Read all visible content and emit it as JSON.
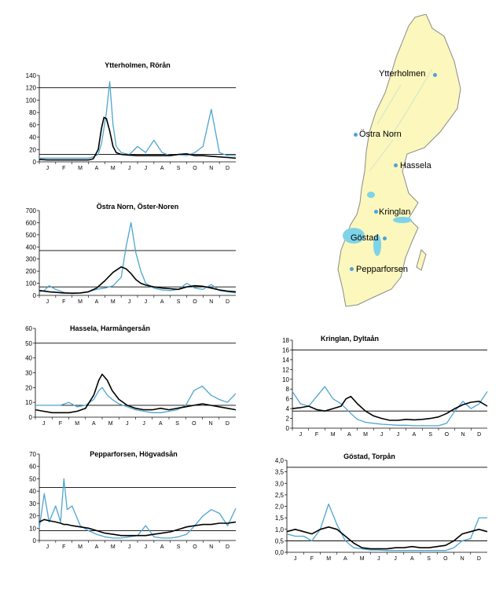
{
  "colors": {
    "observed": "#4ea5cf",
    "model": "#000000",
    "threshold": "#000000",
    "map_land": "#fbf7bd",
    "map_water": "#7fd3e8",
    "map_dot": "#4aa3df"
  },
  "month_labels": [
    "J",
    "F",
    "M",
    "A",
    "M",
    "J",
    "J",
    "A",
    "S",
    "O",
    "N",
    "D"
  ],
  "map": {
    "stations": [
      {
        "name": "Ytterholmen"
      },
      {
        "name": "Östra Norn"
      },
      {
        "name": "Hassela"
      },
      {
        "name": "Kringlan"
      },
      {
        "name": "Göstad"
      },
      {
        "name": "Pepparforsen"
      }
    ]
  },
  "chart_data": [
    {
      "type": "line",
      "title": "Ytterholmen, Rörån",
      "ylim": [
        0,
        140
      ],
      "yticks": [
        "0",
        "20",
        "40",
        "60",
        "80",
        "100",
        "120",
        "140"
      ],
      "thresholds": [
        120,
        12
      ],
      "x": [
        0,
        0.5,
        1,
        1.5,
        2,
        2.5,
        3,
        3.3,
        3.6,
        3.8,
        3.95,
        4.1,
        4.3,
        4.5,
        4.7,
        5,
        5.5,
        6,
        6.5,
        7,
        7.5,
        8,
        8.5,
        9,
        9.5,
        10,
        10.5,
        11,
        11.5,
        12
      ],
      "series": [
        {
          "name": "model",
          "values": [
            4,
            3,
            3,
            3,
            3,
            3,
            3,
            5,
            20,
            55,
            72,
            70,
            50,
            25,
            15,
            12,
            11,
            10,
            10,
            10,
            10,
            10,
            12,
            13,
            10,
            10,
            9,
            8,
            7,
            6
          ]
        },
        {
          "name": "observed",
          "values": [
            6,
            6,
            6,
            6,
            6,
            6,
            6,
            8,
            12,
            30,
            55,
            80,
            130,
            60,
            25,
            15,
            12,
            25,
            15,
            35,
            15,
            10,
            12,
            10,
            15,
            25,
            85,
            15,
            10,
            10
          ]
        }
      ]
    },
    {
      "type": "line",
      "title": "Östra Norn, Öster-Noren",
      "ylim": [
        0,
        700
      ],
      "yticks": [
        "0",
        "100",
        "200",
        "300",
        "400",
        "500",
        "600",
        "700"
      ],
      "thresholds": [
        370,
        70
      ],
      "x": [
        0,
        0.3,
        0.6,
        1,
        1.5,
        2,
        2.5,
        3,
        3.5,
        4,
        4.5,
        5,
        5.3,
        5.6,
        5.9,
        6.2,
        6.5,
        7,
        7.5,
        8,
        8.5,
        9,
        9.5,
        10,
        10.5,
        11,
        11.5,
        12
      ],
      "series": [
        {
          "name": "model",
          "values": [
            40,
            35,
            30,
            25,
            20,
            18,
            20,
            30,
            60,
            120,
            190,
            235,
            220,
            180,
            130,
            100,
            85,
            70,
            60,
            55,
            50,
            70,
            80,
            75,
            60,
            45,
            35,
            30
          ]
        },
        {
          "name": "observed",
          "values": [
            30,
            40,
            80,
            50,
            25,
            15,
            20,
            30,
            50,
            60,
            80,
            150,
            400,
            600,
            350,
            200,
            100,
            60,
            45,
            40,
            50,
            100,
            60,
            50,
            90,
            40,
            30,
            20
          ]
        }
      ]
    },
    {
      "type": "line",
      "title": "Hassela, Harmångersån",
      "ylim": [
        0,
        60
      ],
      "yticks": [
        "0",
        "10",
        "20",
        "30",
        "40",
        "50",
        "60"
      ],
      "thresholds": [
        50,
        8
      ],
      "x": [
        0,
        0.5,
        1,
        1.5,
        2,
        2.5,
        3,
        3.5,
        3.8,
        4,
        4.3,
        4.6,
        5,
        5.5,
        6,
        6.5,
        7,
        7.5,
        8,
        8.5,
        9,
        9.5,
        10,
        10.5,
        11,
        11.5,
        12
      ],
      "series": [
        {
          "name": "model",
          "values": [
            5,
            4,
            3,
            3,
            3,
            4,
            6,
            15,
            25,
            29,
            25,
            18,
            12,
            8,
            6,
            5,
            5,
            6,
            5,
            6,
            7,
            8,
            9,
            8,
            7,
            6,
            5
          ]
        },
        {
          "name": "observed",
          "values": [
            8,
            8,
            8,
            8,
            10,
            7,
            8,
            12,
            18,
            20,
            15,
            12,
            9,
            7,
            5,
            4,
            3,
            3,
            4,
            5,
            8,
            18,
            21,
            15,
            12,
            10,
            16
          ]
        }
      ]
    },
    {
      "type": "line",
      "title": "Kringlan, Dyltaån",
      "ylim": [
        0,
        18
      ],
      "yticks": [
        "0",
        "2",
        "4",
        "6",
        "8",
        "10",
        "12",
        "14",
        "16",
        "18"
      ],
      "thresholds": [
        16,
        3.5
      ],
      "x": [
        0,
        0.5,
        1,
        1.5,
        2,
        2.5,
        3,
        3.3,
        3.6,
        4,
        4.5,
        5,
        5.5,
        6,
        6.5,
        7,
        7.5,
        8,
        8.5,
        9,
        9.5,
        10,
        10.5,
        11,
        11.5,
        12
      ],
      "series": [
        {
          "name": "model",
          "values": [
            4,
            4.2,
            4.5,
            3.8,
            3.5,
            4,
            4.5,
            6,
            6.5,
            5,
            3.5,
            2.5,
            2,
            1.6,
            1.6,
            1.8,
            1.7,
            1.8,
            2,
            2.3,
            3,
            4,
            4.8,
            5.3,
            5.5,
            4.5
          ]
        },
        {
          "name": "observed",
          "values": [
            7.5,
            5,
            4.5,
            6.5,
            8.5,
            6,
            5,
            4,
            3,
            1.8,
            1.2,
            1,
            0.8,
            0.7,
            0.6,
            0.6,
            0.5,
            0.5,
            0.5,
            0.5,
            1,
            3.5,
            5.5,
            4,
            5,
            7.5
          ]
        }
      ]
    },
    {
      "type": "line",
      "title": "Pepparforsen, Högvadsån",
      "ylim": [
        0,
        70
      ],
      "yticks": [
        "0",
        "10",
        "20",
        "30",
        "40",
        "50",
        "60",
        "70"
      ],
      "thresholds": [
        43,
        8
      ],
      "x": [
        0,
        0.3,
        0.6,
        1,
        1.3,
        1.5,
        1.7,
        2,
        2.5,
        3,
        3.5,
        4,
        4.5,
        5,
        5.5,
        6,
        6.5,
        7,
        7.5,
        8,
        8.5,
        9,
        9.5,
        10,
        10.5,
        11,
        11.5,
        12
      ],
      "series": [
        {
          "name": "model",
          "values": [
            15,
            17,
            16,
            15,
            14,
            13,
            13,
            12,
            11,
            10,
            8,
            6,
            5,
            4,
            4,
            4,
            4,
            5,
            6,
            7,
            9,
            11,
            12,
            13,
            13,
            14,
            14,
            15
          ]
        },
        {
          "name": "observed",
          "values": [
            10,
            38,
            15,
            28,
            15,
            50,
            25,
            28,
            12,
            8,
            5,
            3,
            2,
            2,
            3,
            4,
            12,
            3,
            2,
            2,
            3,
            5,
            12,
            20,
            25,
            22,
            12,
            26
          ]
        }
      ]
    },
    {
      "type": "line",
      "title": "Göstad, Torpån",
      "ylim": [
        0,
        4
      ],
      "yticks": [
        "0,0",
        "0,5",
        "1,0",
        "1,5",
        "2,0",
        "2,5",
        "3,0",
        "3,5",
        "4,0"
      ],
      "thresholds": [
        3.7,
        0.5
      ],
      "x": [
        0,
        0.5,
        1,
        1.5,
        2,
        2.5,
        3,
        3.5,
        4,
        4.5,
        5,
        5.5,
        6,
        6.5,
        7,
        7.5,
        8,
        8.5,
        9,
        9.5,
        10,
        10.5,
        11,
        11.5,
        12
      ],
      "series": [
        {
          "name": "model",
          "values": [
            0.9,
            1.0,
            0.9,
            0.8,
            1.0,
            1.1,
            1.0,
            0.7,
            0.4,
            0.2,
            0.15,
            0.15,
            0.15,
            0.2,
            0.2,
            0.25,
            0.2,
            0.2,
            0.25,
            0.3,
            0.5,
            0.8,
            0.9,
            1.0,
            0.9
          ]
        },
        {
          "name": "observed",
          "values": [
            0.8,
            0.7,
            0.7,
            0.5,
            1.0,
            2.1,
            1.2,
            0.5,
            0.2,
            0.15,
            0.1,
            0.1,
            0.08,
            0.08,
            0.08,
            0.08,
            0.08,
            0.08,
            0.08,
            0.08,
            0.2,
            0.5,
            0.6,
            1.5,
            1.5
          ]
        }
      ]
    }
  ]
}
